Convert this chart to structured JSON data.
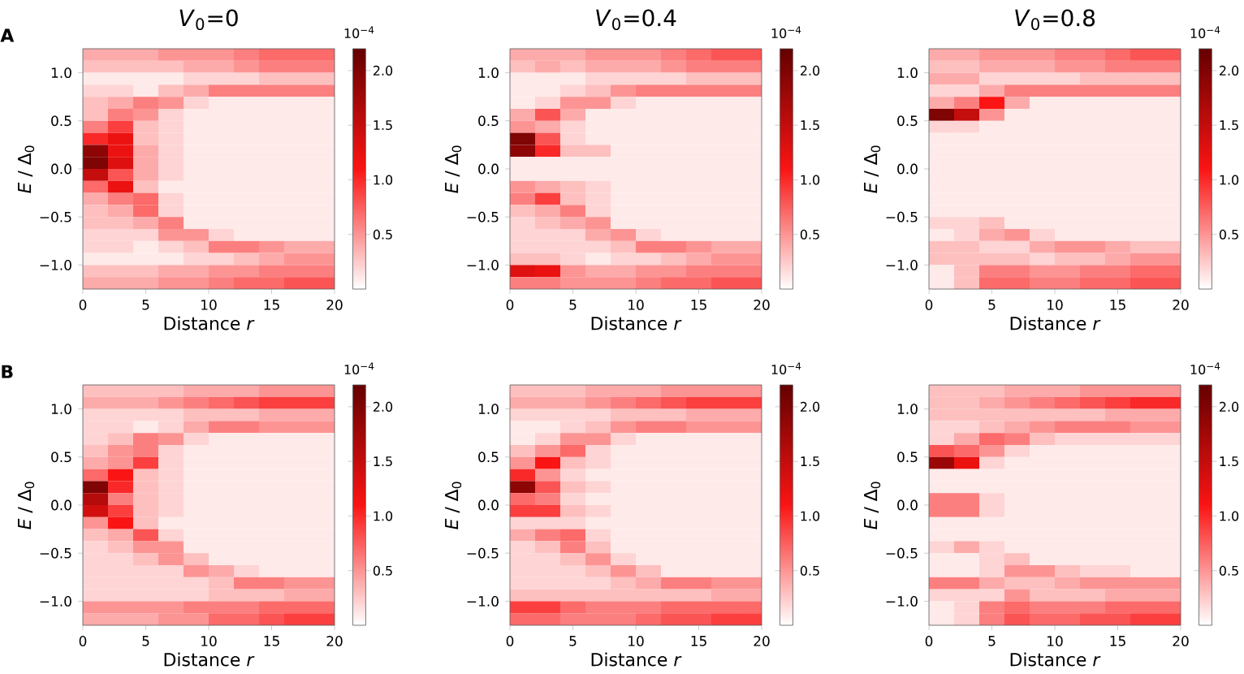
{
  "chart_data": [
    {
      "type": "heatmap",
      "title": "*V*$_{0}$=0",
      "xlabel": "Distance *r*",
      "ylabel": "*E* / Δ$_{0}$",
      "clabel": "10$^{−4}$",
      "annotations": [
        "A"
      ],
      "xlim": [
        0,
        20
      ],
      "ylim": [
        -1.25,
        1.25
      ],
      "xticks": [
        0,
        5,
        10,
        15,
        20
      ],
      "yticks": [
        {
          "value": -1.0,
          "label": "−1.0"
        },
        {
          "value": -0.5,
          "label": "−0.5"
        },
        {
          "value": 0.0,
          "label": "0.0"
        },
        {
          "value": 0.5,
          "label": "0.5"
        },
        {
          "value": 1.0,
          "label": "1.0"
        }
      ],
      "clim": [
        0,
        2.2
      ],
      "cticks": [
        {
          "value": 0.5,
          "label": "0.5"
        },
        {
          "value": 1.0,
          "label": "1.0"
        },
        {
          "value": 1.5,
          "label": "1.5"
        },
        {
          "value": 2.0,
          "label": "2.0"
        }
      ],
      "cells": [
        [
          0.4,
          0.4,
          0.4,
          0.5,
          0.5,
          0.5,
          0.6,
          0.7,
          0.7,
          0.7
        ],
        [
          0.3,
          0.3,
          0.3,
          0.3,
          0.4,
          0.4,
          0.5,
          0.6,
          0.6,
          0.6
        ],
        [
          0.1,
          0.1,
          0.1,
          0.1,
          0.2,
          0.2,
          0.2,
          0.3,
          0.3,
          0.3
        ],
        [
          0.2,
          0.2,
          0.1,
          0.3,
          0.4,
          0.6,
          0.6,
          0.6,
          0.6,
          0.6
        ],
        [
          0.3,
          0.4,
          0.6,
          0.5,
          0.2,
          0.1,
          0.1,
          0.1,
          0.1,
          0.1
        ],
        [
          0.3,
          0.6,
          0.5,
          0.2,
          0.1,
          0.1,
          0.1,
          0.1,
          0.1,
          0.1
        ],
        [
          0.6,
          0.9,
          0.3,
          0.2,
          0.1,
          0.1,
          0.1,
          0.1,
          0.1,
          0.1
        ],
        [
          1.0,
          1.2,
          0.3,
          0.2,
          0.1,
          0.1,
          0.1,
          0.1,
          0.1,
          0.1
        ],
        [
          1.9,
          1.2,
          0.4,
          0.2,
          0.1,
          0.1,
          0.1,
          0.1,
          0.1,
          0.1
        ],
        [
          2.0,
          1.3,
          0.4,
          0.2,
          0.1,
          0.1,
          0.1,
          0.1,
          0.1,
          0.1
        ],
        [
          1.5,
          0.8,
          0.4,
          0.2,
          0.1,
          0.1,
          0.1,
          0.1,
          0.1,
          0.1
        ],
        [
          0.7,
          1.2,
          0.3,
          0.1,
          0.1,
          0.1,
          0.1,
          0.1,
          0.1,
          0.1
        ],
        [
          0.4,
          0.6,
          0.7,
          0.2,
          0.1,
          0.1,
          0.1,
          0.1,
          0.1,
          0.1
        ],
        [
          0.3,
          0.4,
          0.7,
          0.2,
          0.1,
          0.1,
          0.1,
          0.1,
          0.1,
          0.1
        ],
        [
          0.3,
          0.3,
          0.4,
          0.6,
          0.1,
          0.1,
          0.1,
          0.1,
          0.1,
          0.1
        ],
        [
          0.2,
          0.2,
          0.2,
          0.5,
          0.5,
          0.2,
          0.1,
          0.1,
          0.1,
          0.1
        ],
        [
          0.2,
          0.2,
          0.1,
          0.2,
          0.3,
          0.6,
          0.6,
          0.5,
          0.4,
          0.4
        ],
        [
          0.1,
          0.1,
          0.1,
          0.1,
          0.2,
          0.2,
          0.3,
          0.4,
          0.5,
          0.5
        ],
        [
          0.3,
          0.3,
          0.3,
          0.4,
          0.4,
          0.5,
          0.5,
          0.6,
          0.6,
          0.6
        ],
        [
          0.4,
          0.4,
          0.4,
          0.5,
          0.5,
          0.6,
          0.7,
          0.7,
          0.8,
          0.8
        ]
      ]
    },
    {
      "type": "heatmap",
      "title": "*V*$_{0}$=0.4",
      "xlabel": "Distance *r*",
      "ylabel": "*E* / Δ$_{0}$",
      "clabel": "10$^{−4}$",
      "xlim": [
        0,
        20
      ],
      "ylim": [
        -1.25,
        1.25
      ],
      "xticks": [
        0,
        5,
        10,
        15,
        20
      ],
      "yticks": [
        {
          "value": -1.0,
          "label": "−1.0"
        },
        {
          "value": -0.5,
          "label": "−0.5"
        },
        {
          "value": 0.0,
          "label": "0.0"
        },
        {
          "value": 0.5,
          "label": "0.5"
        },
        {
          "value": 1.0,
          "label": "1.0"
        }
      ],
      "clim": [
        0,
        2.2
      ],
      "cticks": [
        {
          "value": 0.5,
          "label": "0.5"
        },
        {
          "value": 1.0,
          "label": "1.0"
        },
        {
          "value": 1.5,
          "label": "1.5"
        },
        {
          "value": 2.0,
          "label": "2.0"
        }
      ],
      "cells": [
        [
          0.4,
          0.4,
          0.4,
          0.5,
          0.5,
          0.5,
          0.6,
          0.7,
          0.8,
          0.8
        ],
        [
          0.3,
          0.4,
          0.3,
          0.4,
          0.4,
          0.4,
          0.5,
          0.6,
          0.6,
          0.6
        ],
        [
          0.1,
          0.1,
          0.1,
          0.2,
          0.2,
          0.2,
          0.2,
          0.3,
          0.3,
          0.3
        ],
        [
          0.1,
          0.1,
          0.2,
          0.3,
          0.5,
          0.6,
          0.6,
          0.6,
          0.6,
          0.6
        ],
        [
          0.1,
          0.2,
          0.5,
          0.5,
          0.2,
          0.1,
          0.1,
          0.1,
          0.1,
          0.1
        ],
        [
          0.4,
          0.8,
          0.4,
          0.1,
          0.1,
          0.1,
          0.1,
          0.1,
          0.1,
          0.1
        ],
        [
          0.5,
          0.4,
          0.2,
          0.1,
          0.1,
          0.1,
          0.1,
          0.1,
          0.1,
          0.1
        ],
        [
          2.0,
          0.8,
          0.2,
          0.1,
          0.1,
          0.1,
          0.1,
          0.1,
          0.1,
          0.1
        ],
        [
          1.9,
          1.0,
          0.3,
          0.3,
          0.1,
          0.1,
          0.1,
          0.1,
          0.1,
          0.1
        ],
        [
          0.1,
          0.1,
          0.1,
          0.1,
          0.1,
          0.1,
          0.1,
          0.1,
          0.1,
          0.1
        ],
        [
          0.1,
          0.1,
          0.1,
          0.1,
          0.1,
          0.1,
          0.1,
          0.1,
          0.1,
          0.1
        ],
        [
          0.5,
          0.4,
          0.3,
          0.2,
          0.1,
          0.1,
          0.1,
          0.1,
          0.1,
          0.1
        ],
        [
          0.6,
          0.9,
          0.3,
          0.2,
          0.1,
          0.1,
          0.1,
          0.1,
          0.1,
          0.1
        ],
        [
          0.3,
          0.4,
          0.6,
          0.2,
          0.1,
          0.1,
          0.1,
          0.1,
          0.1,
          0.1
        ],
        [
          0.2,
          0.3,
          0.4,
          0.5,
          0.1,
          0.1,
          0.1,
          0.1,
          0.1,
          0.1
        ],
        [
          0.2,
          0.2,
          0.2,
          0.4,
          0.5,
          0.2,
          0.1,
          0.1,
          0.1,
          0.1
        ],
        [
          0.2,
          0.2,
          0.2,
          0.2,
          0.3,
          0.6,
          0.6,
          0.5,
          0.4,
          0.4
        ],
        [
          0.3,
          0.3,
          0.2,
          0.1,
          0.2,
          0.2,
          0.3,
          0.4,
          0.5,
          0.5
        ],
        [
          1.3,
          1.2,
          0.5,
          0.4,
          0.4,
          0.5,
          0.5,
          0.6,
          0.6,
          0.6
        ],
        [
          0.6,
          0.6,
          0.5,
          0.5,
          0.5,
          0.6,
          0.7,
          0.7,
          0.8,
          0.8
        ]
      ]
    },
    {
      "type": "heatmap",
      "title": "*V*$_{0}$=0.8",
      "xlabel": "Distance *r*",
      "ylabel": "*E* / Δ$_{0}$",
      "clabel": "10$^{−4}$",
      "xlim": [
        0,
        20
      ],
      "ylim": [
        -1.25,
        1.25
      ],
      "xticks": [
        0,
        5,
        10,
        15,
        20
      ],
      "yticks": [
        {
          "value": -1.0,
          "label": "−1.0"
        },
        {
          "value": -0.5,
          "label": "−0.5"
        },
        {
          "value": 0.0,
          "label": "0.0"
        },
        {
          "value": 0.5,
          "label": "0.5"
        },
        {
          "value": 1.0,
          "label": "1.0"
        }
      ],
      "clim": [
        0,
        2.2
      ],
      "cticks": [
        {
          "value": 0.5,
          "label": "0.5"
        },
        {
          "value": 1.0,
          "label": "1.0"
        },
        {
          "value": 1.5,
          "label": "1.5"
        },
        {
          "value": 2.0,
          "label": "2.0"
        }
      ],
      "cells": [
        [
          0.4,
          0.4,
          0.5,
          0.5,
          0.5,
          0.6,
          0.6,
          0.7,
          0.8,
          0.8
        ],
        [
          0.3,
          0.3,
          0.4,
          0.4,
          0.4,
          0.5,
          0.5,
          0.6,
          0.6,
          0.6
        ],
        [
          0.4,
          0.4,
          0.2,
          0.2,
          0.2,
          0.2,
          0.3,
          0.3,
          0.3,
          0.3
        ],
        [
          0.2,
          0.2,
          0.4,
          0.6,
          0.6,
          0.6,
          0.6,
          0.6,
          0.6,
          0.6
        ],
        [
          0.4,
          0.6,
          1.1,
          0.4,
          0.1,
          0.1,
          0.1,
          0.1,
          0.1,
          0.1
        ],
        [
          2.0,
          1.5,
          0.5,
          0.1,
          0.1,
          0.1,
          0.1,
          0.1,
          0.1,
          0.1
        ],
        [
          0.2,
          0.2,
          0.1,
          0.1,
          0.1,
          0.1,
          0.1,
          0.1,
          0.1,
          0.1
        ],
        [
          0.1,
          0.1,
          0.1,
          0.1,
          0.1,
          0.1,
          0.1,
          0.1,
          0.1,
          0.1
        ],
        [
          0.1,
          0.1,
          0.1,
          0.1,
          0.1,
          0.1,
          0.1,
          0.1,
          0.1,
          0.1
        ],
        [
          0.1,
          0.1,
          0.1,
          0.1,
          0.1,
          0.1,
          0.1,
          0.1,
          0.1,
          0.1
        ],
        [
          0.1,
          0.1,
          0.1,
          0.1,
          0.1,
          0.1,
          0.1,
          0.1,
          0.1,
          0.1
        ],
        [
          0.1,
          0.1,
          0.1,
          0.1,
          0.1,
          0.1,
          0.1,
          0.1,
          0.1,
          0.1
        ],
        [
          0.1,
          0.1,
          0.1,
          0.1,
          0.1,
          0.1,
          0.1,
          0.1,
          0.1,
          0.1
        ],
        [
          0.1,
          0.1,
          0.1,
          0.1,
          0.1,
          0.1,
          0.1,
          0.1,
          0.1,
          0.1
        ],
        [
          0.2,
          0.2,
          0.3,
          0.1,
          0.1,
          0.1,
          0.1,
          0.1,
          0.1,
          0.1
        ],
        [
          0.1,
          0.2,
          0.4,
          0.5,
          0.2,
          0.1,
          0.1,
          0.1,
          0.1,
          0.1
        ],
        [
          0.3,
          0.3,
          0.2,
          0.2,
          0.4,
          0.5,
          0.5,
          0.4,
          0.3,
          0.3
        ],
        [
          0.3,
          0.3,
          0.3,
          0.3,
          0.2,
          0.3,
          0.3,
          0.4,
          0.5,
          0.5
        ],
        [
          0.1,
          0.3,
          0.6,
          0.6,
          0.5,
          0.5,
          0.6,
          0.6,
          0.7,
          0.7
        ],
        [
          0.1,
          0.3,
          0.7,
          0.7,
          0.6,
          0.6,
          0.7,
          0.7,
          0.8,
          0.8
        ]
      ]
    },
    {
      "type": "heatmap",
      "xlabel": "Distance *r*",
      "ylabel": "*E* / Δ$_{0}$",
      "clabel": "10$^{−4}$",
      "annotations": [
        "B"
      ],
      "xlim": [
        0,
        20
      ],
      "ylim": [
        -1.25,
        1.25
      ],
      "xticks": [
        0,
        5,
        10,
        15,
        20
      ],
      "yticks": [
        {
          "value": -1.0,
          "label": "−1.0"
        },
        {
          "value": -0.5,
          "label": "−0.5"
        },
        {
          "value": 0.0,
          "label": "0.0"
        },
        {
          "value": 0.5,
          "label": "0.5"
        },
        {
          "value": 1.0,
          "label": "1.0"
        }
      ],
      "clim": [
        0,
        2.2
      ],
      "cticks": [
        {
          "value": 0.5,
          "label": "0.5"
        },
        {
          "value": 1.0,
          "label": "1.0"
        },
        {
          "value": 1.5,
          "label": "1.5"
        },
        {
          "value": 2.0,
          "label": "2.0"
        }
      ],
      "cells": [
        [
          0.3,
          0.3,
          0.3,
          0.3,
          0.4,
          0.4,
          0.4,
          0.5,
          0.5,
          0.5
        ],
        [
          0.4,
          0.4,
          0.4,
          0.5,
          0.6,
          0.7,
          0.8,
          0.9,
          0.9,
          0.9
        ],
        [
          0.2,
          0.2,
          0.2,
          0.2,
          0.3,
          0.3,
          0.3,
          0.4,
          0.4,
          0.4
        ],
        [
          0.2,
          0.2,
          0.1,
          0.2,
          0.4,
          0.6,
          0.6,
          0.5,
          0.5,
          0.5
        ],
        [
          0.2,
          0.3,
          0.6,
          0.5,
          0.2,
          0.1,
          0.1,
          0.1,
          0.1,
          0.1
        ],
        [
          0.3,
          0.5,
          0.6,
          0.2,
          0.1,
          0.1,
          0.1,
          0.1,
          0.1,
          0.1
        ],
        [
          0.4,
          0.5,
          0.9,
          0.2,
          0.1,
          0.1,
          0.1,
          0.1,
          0.1,
          0.1
        ],
        [
          0.7,
          1.1,
          0.3,
          0.2,
          0.1,
          0.1,
          0.1,
          0.1,
          0.1,
          0.1
        ],
        [
          2.0,
          1.0,
          0.3,
          0.2,
          0.1,
          0.1,
          0.1,
          0.1,
          0.1,
          0.1
        ],
        [
          1.6,
          0.6,
          0.3,
          0.2,
          0.1,
          0.1,
          0.1,
          0.1,
          0.1,
          0.1
        ],
        [
          1.4,
          0.9,
          0.3,
          0.2,
          0.1,
          0.1,
          0.1,
          0.1,
          0.1,
          0.1
        ],
        [
          0.5,
          1.1,
          0.3,
          0.1,
          0.1,
          0.1,
          0.1,
          0.1,
          0.1,
          0.1
        ],
        [
          0.3,
          0.4,
          0.8,
          0.2,
          0.1,
          0.1,
          0.1,
          0.1,
          0.1,
          0.1
        ],
        [
          0.2,
          0.3,
          0.5,
          0.5,
          0.1,
          0.1,
          0.1,
          0.1,
          0.1,
          0.1
        ],
        [
          0.2,
          0.2,
          0.3,
          0.5,
          0.3,
          0.1,
          0.1,
          0.1,
          0.1,
          0.1
        ],
        [
          0.2,
          0.2,
          0.2,
          0.2,
          0.5,
          0.4,
          0.2,
          0.1,
          0.1,
          0.1
        ],
        [
          0.2,
          0.2,
          0.2,
          0.2,
          0.2,
          0.3,
          0.6,
          0.6,
          0.5,
          0.5
        ],
        [
          0.2,
          0.2,
          0.2,
          0.2,
          0.2,
          0.3,
          0.3,
          0.3,
          0.4,
          0.4
        ],
        [
          0.5,
          0.5,
          0.5,
          0.5,
          0.6,
          0.6,
          0.6,
          0.7,
          0.7,
          0.7
        ],
        [
          0.4,
          0.4,
          0.4,
          0.5,
          0.5,
          0.7,
          0.7,
          0.8,
          0.9,
          0.9
        ]
      ]
    },
    {
      "type": "heatmap",
      "xlabel": "Distance *r*",
      "ylabel": "*E* / Δ$_{0}$",
      "clabel": "10$^{−4}$",
      "xlim": [
        0,
        20
      ],
      "ylim": [
        -1.25,
        1.25
      ],
      "xticks": [
        0,
        5,
        10,
        15,
        20
      ],
      "yticks": [
        {
          "value": -1.0,
          "label": "−1.0"
        },
        {
          "value": -0.5,
          "label": "−0.5"
        },
        {
          "value": 0.0,
          "label": "0.0"
        },
        {
          "value": 0.5,
          "label": "0.5"
        },
        {
          "value": 1.0,
          "label": "1.0"
        }
      ],
      "clim": [
        0,
        2.2
      ],
      "cticks": [
        {
          "value": 0.5,
          "label": "0.5"
        },
        {
          "value": 1.0,
          "label": "1.0"
        },
        {
          "value": 1.5,
          "label": "1.5"
        },
        {
          "value": 2.0,
          "label": "2.0"
        }
      ],
      "cells": [
        [
          0.3,
          0.3,
          0.3,
          0.4,
          0.4,
          0.4,
          0.5,
          0.5,
          0.5,
          0.5
        ],
        [
          0.4,
          0.4,
          0.4,
          0.5,
          0.6,
          0.7,
          0.8,
          0.9,
          0.9,
          0.9
        ],
        [
          0.2,
          0.2,
          0.2,
          0.2,
          0.3,
          0.3,
          0.3,
          0.4,
          0.4,
          0.4
        ],
        [
          0.1,
          0.1,
          0.2,
          0.3,
          0.5,
          0.6,
          0.6,
          0.5,
          0.5,
          0.5
        ],
        [
          0.1,
          0.2,
          0.5,
          0.5,
          0.2,
          0.1,
          0.1,
          0.1,
          0.1,
          0.1
        ],
        [
          0.3,
          0.5,
          0.7,
          0.2,
          0.1,
          0.1,
          0.1,
          0.1,
          0.1,
          0.1
        ],
        [
          0.5,
          1.1,
          0.3,
          0.2,
          0.1,
          0.1,
          0.1,
          0.1,
          0.1,
          0.1
        ],
        [
          1.0,
          0.5,
          0.2,
          0.1,
          0.1,
          0.1,
          0.1,
          0.1,
          0.1,
          0.1
        ],
        [
          1.9,
          0.8,
          0.3,
          0.2,
          0.1,
          0.1,
          0.1,
          0.1,
          0.1,
          0.1
        ],
        [
          0.7,
          0.6,
          0.2,
          0.1,
          0.1,
          0.1,
          0.1,
          0.1,
          0.1,
          0.1
        ],
        [
          0.9,
          0.9,
          0.3,
          0.2,
          0.1,
          0.1,
          0.1,
          0.1,
          0.1,
          0.1
        ],
        [
          0.2,
          0.2,
          0.2,
          0.1,
          0.1,
          0.1,
          0.1,
          0.1,
          0.1,
          0.1
        ],
        [
          0.4,
          0.6,
          0.7,
          0.2,
          0.1,
          0.1,
          0.1,
          0.1,
          0.1,
          0.1
        ],
        [
          0.2,
          0.3,
          0.6,
          0.3,
          0.1,
          0.1,
          0.1,
          0.1,
          0.1,
          0.1
        ],
        [
          0.2,
          0.2,
          0.3,
          0.5,
          0.2,
          0.1,
          0.1,
          0.1,
          0.1,
          0.1
        ],
        [
          0.2,
          0.2,
          0.2,
          0.3,
          0.5,
          0.3,
          0.1,
          0.1,
          0.1,
          0.1
        ],
        [
          0.2,
          0.2,
          0.2,
          0.2,
          0.3,
          0.4,
          0.6,
          0.6,
          0.5,
          0.5
        ],
        [
          0.3,
          0.3,
          0.3,
          0.3,
          0.3,
          0.3,
          0.3,
          0.3,
          0.4,
          0.4
        ],
        [
          0.9,
          0.9,
          0.7,
          0.6,
          0.6,
          0.6,
          0.7,
          0.7,
          0.7,
          0.7
        ],
        [
          0.7,
          0.7,
          0.6,
          0.6,
          0.6,
          0.7,
          0.8,
          0.8,
          0.9,
          0.9
        ]
      ]
    },
    {
      "type": "heatmap",
      "xlabel": "Distance *r*",
      "ylabel": "*E* / Δ$_{0}$",
      "clabel": "10$^{−4}$",
      "xlim": [
        0,
        20
      ],
      "ylim": [
        -1.25,
        1.25
      ],
      "xticks": [
        0,
        5,
        10,
        15,
        20
      ],
      "yticks": [
        {
          "value": -1.0,
          "label": "−1.0"
        },
        {
          "value": -0.5,
          "label": "−0.5"
        },
        {
          "value": 0.0,
          "label": "0.0"
        },
        {
          "value": 0.5,
          "label": "0.5"
        },
        {
          "value": 1.0,
          "label": "1.0"
        }
      ],
      "clim": [
        0,
        2.2
      ],
      "cticks": [
        {
          "value": 0.5,
          "label": "0.5"
        },
        {
          "value": 1.0,
          "label": "1.0"
        },
        {
          "value": 1.5,
          "label": "1.5"
        },
        {
          "value": 2.0,
          "label": "2.0"
        }
      ],
      "cells": [
        [
          0.3,
          0.3,
          0.3,
          0.4,
          0.4,
          0.4,
          0.5,
          0.5,
          0.5,
          0.5
        ],
        [
          0.3,
          0.3,
          0.4,
          0.5,
          0.6,
          0.7,
          0.8,
          0.9,
          1.0,
          1.0
        ],
        [
          0.3,
          0.3,
          0.3,
          0.3,
          0.3,
          0.3,
          0.3,
          0.4,
          0.4,
          0.4
        ],
        [
          0.2,
          0.2,
          0.3,
          0.4,
          0.5,
          0.6,
          0.6,
          0.6,
          0.5,
          0.5
        ],
        [
          0.2,
          0.4,
          0.7,
          0.6,
          0.3,
          0.2,
          0.2,
          0.2,
          0.2,
          0.2
        ],
        [
          0.8,
          0.7,
          0.5,
          0.2,
          0.1,
          0.1,
          0.1,
          0.1,
          0.1,
          0.1
        ],
        [
          1.8,
          1.2,
          0.2,
          0.1,
          0.1,
          0.1,
          0.1,
          0.1,
          0.1,
          0.1
        ],
        [
          0.1,
          0.1,
          0.1,
          0.1,
          0.1,
          0.1,
          0.1,
          0.1,
          0.1,
          0.1
        ],
        [
          0.1,
          0.1,
          0.1,
          0.1,
          0.1,
          0.1,
          0.1,
          0.1,
          0.1,
          0.1
        ],
        [
          0.6,
          0.6,
          0.2,
          0.1,
          0.1,
          0.1,
          0.1,
          0.1,
          0.1,
          0.1
        ],
        [
          0.6,
          0.6,
          0.2,
          0.1,
          0.1,
          0.1,
          0.1,
          0.1,
          0.1,
          0.1
        ],
        [
          0.1,
          0.1,
          0.1,
          0.1,
          0.1,
          0.1,
          0.1,
          0.1,
          0.1,
          0.1
        ],
        [
          0.1,
          0.1,
          0.1,
          0.1,
          0.1,
          0.1,
          0.1,
          0.1,
          0.1,
          0.1
        ],
        [
          0.2,
          0.4,
          0.2,
          0.1,
          0.1,
          0.1,
          0.1,
          0.1,
          0.1,
          0.1
        ],
        [
          0.1,
          0.1,
          0.2,
          0.3,
          0.1,
          0.1,
          0.1,
          0.1,
          0.1,
          0.1
        ],
        [
          0.1,
          0.1,
          0.2,
          0.5,
          0.5,
          0.3,
          0.2,
          0.2,
          0.1,
          0.1
        ],
        [
          0.6,
          0.6,
          0.4,
          0.3,
          0.3,
          0.4,
          0.5,
          0.5,
          0.5,
          0.5
        ],
        [
          0.2,
          0.2,
          0.2,
          0.5,
          0.3,
          0.3,
          0.3,
          0.4,
          0.4,
          0.4
        ],
        [
          0.1,
          0.2,
          0.6,
          0.7,
          0.6,
          0.6,
          0.6,
          0.7,
          0.7,
          0.7
        ],
        [
          0.1,
          0.2,
          0.6,
          0.8,
          0.7,
          0.7,
          0.8,
          0.8,
          0.9,
          0.9
        ]
      ]
    }
  ]
}
